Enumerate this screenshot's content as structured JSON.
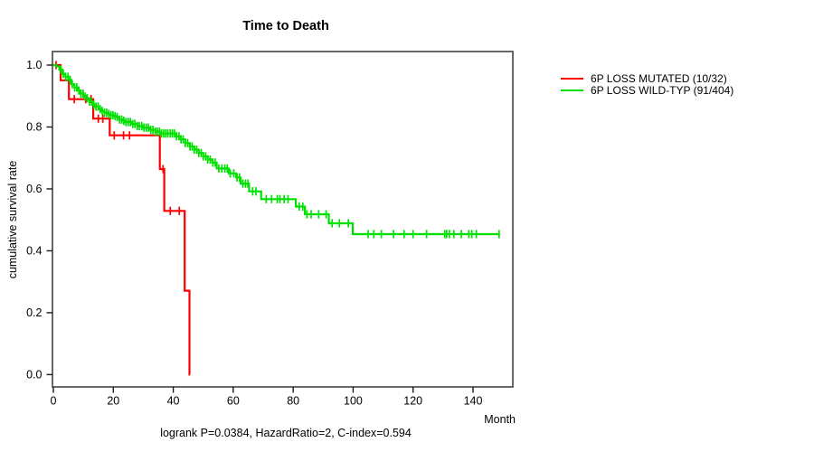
{
  "title": "Time to Death",
  "footer": "logrank P=0.0384, HazardRatio=2, C-index=0.594",
  "axes": {
    "x_label": "Month",
    "y_label": "cumulative survival rate",
    "x_ticks": [
      0,
      20,
      40,
      60,
      80,
      100,
      120,
      140
    ],
    "y_ticks": [
      "0.0",
      "0.2",
      "0.4",
      "0.6",
      "0.8",
      "1.0"
    ]
  },
  "legend": {
    "items": [
      {
        "label": "6P LOSS MUTATED (10/32)",
        "color": "#ff0000"
      },
      {
        "label": "6P LOSS WILD-TYP (91/404)",
        "color": "#00e000"
      }
    ]
  },
  "chart_data": {
    "type": "line",
    "subtype": "kaplan-meier-step",
    "title": "Time to Death",
    "xlabel": "Month",
    "ylabel": "cumulative survival rate",
    "xlim": [
      0,
      153
    ],
    "ylim": [
      0.0,
      1.0
    ],
    "grid": false,
    "legend_position": "right-outside",
    "annotation": "logrank P=0.0384, HazardRatio=2, C-index=0.594",
    "series": [
      {
        "id": "mutated",
        "name": "6P LOSS MUTATED (10/32)",
        "color": "#ff0000",
        "events": "10/32",
        "steps": [
          [
            0,
            1.0
          ],
          [
            2.4,
            0.951
          ],
          [
            5.2,
            0.89
          ],
          [
            13.3,
            0.827
          ],
          [
            18.8,
            0.773
          ],
          [
            35.5,
            0.664
          ],
          [
            37.0,
            0.529
          ],
          [
            43.8,
            0.271
          ],
          [
            45.4,
            0.0
          ]
        ],
        "end_month": 45.6,
        "censor_months": [
          0.9,
          7.0,
          10.8,
          12.6,
          15.0,
          16.5,
          20.3,
          23.4,
          25.4,
          36.6,
          39.0,
          42.0
        ]
      },
      {
        "id": "wildtype",
        "name": "6P LOSS WILD-TYP (91/404)",
        "color": "#00e000",
        "events": "91/404",
        "steps": [
          [
            0,
            1.0
          ],
          [
            1,
            0.995
          ],
          [
            2,
            0.985
          ],
          [
            3,
            0.972
          ],
          [
            4,
            0.962
          ],
          [
            5,
            0.952
          ],
          [
            6,
            0.938
          ],
          [
            7,
            0.928
          ],
          [
            8,
            0.918
          ],
          [
            9,
            0.908
          ],
          [
            10,
            0.898
          ],
          [
            11,
            0.893
          ],
          [
            12,
            0.882
          ],
          [
            13,
            0.872
          ],
          [
            14,
            0.866
          ],
          [
            15,
            0.858
          ],
          [
            16,
            0.852
          ],
          [
            17,
            0.846
          ],
          [
            18,
            0.842
          ],
          [
            19,
            0.838
          ],
          [
            20,
            0.835
          ],
          [
            21,
            0.832
          ],
          [
            22,
            0.824
          ],
          [
            23,
            0.82
          ],
          [
            24,
            0.816
          ],
          [
            26,
            0.81
          ],
          [
            28,
            0.803
          ],
          [
            30,
            0.798
          ],
          [
            32,
            0.791
          ],
          [
            34,
            0.785
          ],
          [
            35.5,
            0.779
          ],
          [
            41,
            0.77
          ],
          [
            42.5,
            0.76
          ],
          [
            44,
            0.748
          ],
          [
            45.5,
            0.737
          ],
          [
            47,
            0.727
          ],
          [
            48.5,
            0.716
          ],
          [
            50,
            0.705
          ],
          [
            51.5,
            0.695
          ],
          [
            53,
            0.685
          ],
          [
            54.5,
            0.666
          ],
          [
            58.5,
            0.65
          ],
          [
            61,
            0.637
          ],
          [
            62.5,
            0.617
          ],
          [
            65.3,
            0.592
          ],
          [
            69.3,
            0.567
          ],
          [
            80.9,
            0.543
          ],
          [
            83.9,
            0.518
          ],
          [
            91.9,
            0.489
          ],
          [
            99.9,
            0.454
          ]
        ],
        "end_month": 148.7,
        "censor_months": [
          2.5,
          3.3,
          4.1,
          4.9,
          5.6,
          6.3,
          7.1,
          7.8,
          8.5,
          9.2,
          9.9,
          10.6,
          11.3,
          12.1,
          12.8,
          13.5,
          14.2,
          14.9,
          15.6,
          16.3,
          17.1,
          17.8,
          18.5,
          19.2,
          19.9,
          20.6,
          21.3,
          22.1,
          22.8,
          23.5,
          24.2,
          25.0,
          25.7,
          26.5,
          27.2,
          28.0,
          28.7,
          29.5,
          30.2,
          31.0,
          31.7,
          32.5,
          33.2,
          34.0,
          34.7,
          35.4,
          36.1,
          36.8,
          37.5,
          38.2,
          39.0,
          39.7,
          40.4,
          41.1,
          41.9,
          42.6,
          43.3,
          44.0,
          44.8,
          45.6,
          46.3,
          47.0,
          47.8,
          48.5,
          49.3,
          50.0,
          50.8,
          51.5,
          52.3,
          53.2,
          54.0,
          55.2,
          56.2,
          57.2,
          58.0,
          59.0,
          60.2,
          61.3,
          62.1,
          63.2,
          64.1,
          64.9,
          66.5,
          67.6,
          71.0,
          72.8,
          74.7,
          75.6,
          77.0,
          78.3,
          82.0,
          83.2,
          84.6,
          86.0,
          88.5,
          91.0,
          93.0,
          95.4,
          98.4,
          105.0,
          106.9,
          109.4,
          113.5,
          117.0,
          120.0,
          124.5,
          130.6,
          131.2,
          132.1,
          133.6,
          136.1,
          138.6,
          139.6,
          141.1,
          148.7
        ]
      }
    ]
  }
}
